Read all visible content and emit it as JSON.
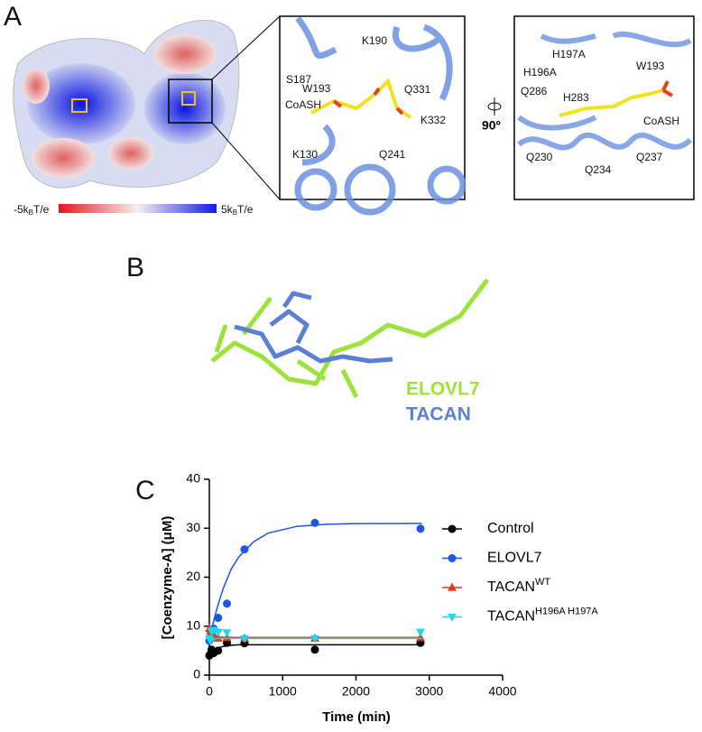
{
  "panels": {
    "A": {
      "label": "A",
      "colorbar": {
        "min": {
          "text": "-5k",
          "sub": "B",
          "suffix": "T/e"
        },
        "max": {
          "text": "5k",
          "sub": "B",
          "suffix": "T/e"
        }
      },
      "inset1_labels": [
        "K190",
        "S187",
        "W193",
        "Q331",
        "CoASH",
        "K332",
        "K130",
        "Q241"
      ],
      "rotation": "90º",
      "inset2_labels": [
        "H197A",
        "W193",
        "H196A",
        "Q286",
        "H283",
        "CoASH",
        "Q230",
        "Q234",
        "Q237"
      ]
    },
    "B": {
      "label": "B",
      "legend": [
        "ELOVL7",
        "TACAN"
      ]
    },
    "C": {
      "label": "C"
    }
  },
  "chart_data": {
    "type": "scatter",
    "x_label": "Time (min)",
    "y_label": "[Coenzyme-A] (μM)",
    "xlim": [
      0,
      4000
    ],
    "xticks": [
      0,
      1000,
      2000,
      3000,
      4000
    ],
    "ylim": [
      0,
      40
    ],
    "yticks": [
      0,
      10,
      20,
      30,
      40
    ],
    "fit_x": [
      0,
      25,
      50,
      100,
      150,
      200,
      300,
      400,
      600,
      800,
      1200,
      1600,
      2000,
      2900
    ],
    "series": [
      {
        "name": "Control",
        "color": "#000000",
        "marker": "circle",
        "x": [
          0,
          15,
          30,
          60,
          120,
          240,
          480,
          1440,
          2880
        ],
        "values": [
          4,
          4.3,
          5.2,
          4.5,
          5,
          6.6,
          6.5,
          5.2,
          6.6
        ],
        "fit": [
          4,
          4.5,
          4.9,
          5.4,
          5.7,
          5.9,
          6.1,
          6.2,
          6.2,
          6.2,
          6.2,
          6.2,
          6.2,
          6.2
        ]
      },
      {
        "name": "ELOVL7",
        "color": "#1a56e8",
        "marker": "circle",
        "x": [
          0,
          15,
          30,
          60,
          120,
          240,
          480,
          1440,
          2880
        ],
        "values": [
          7,
          7.5,
          8.5,
          9.5,
          11.7,
          14.6,
          25.7,
          31.1,
          29.9
        ],
        "fit": [
          7,
          8.8,
          10.5,
          13.4,
          15.9,
          18.1,
          21.7,
          24.1,
          27.2,
          29,
          30.4,
          30.8,
          30.95,
          31
        ]
      },
      {
        "name": "TACAN",
        "name_sup": "WT",
        "color": "#e8341c",
        "marker": "triangle",
        "x": [
          0,
          15,
          30,
          60,
          120,
          240,
          480,
          1440,
          2880
        ],
        "values": [
          9.5,
          9,
          8.7,
          8.2,
          7.5,
          7.6,
          7.5,
          7.5,
          7.6
        ],
        "fit": [
          9,
          8.56,
          8.26,
          7.95,
          7.81,
          7.75,
          7.71,
          7.7,
          7.7,
          7.7,
          7.7,
          7.7,
          7.7,
          7.7
        ]
      },
      {
        "name": "TACAN",
        "name_sup": "H196A H197A",
        "color": "#19d8e8",
        "marker": "triangle-down",
        "x": [
          0,
          15,
          30,
          60,
          120,
          240,
          480,
          1440,
          2880
        ],
        "values": [
          7.5,
          7,
          9,
          9.2,
          8.8,
          8.7,
          7.5,
          7.5,
          8.8
        ],
        "fit": [
          7.5,
          7.5,
          7.5,
          7.5,
          7.5,
          7.5,
          7.5,
          7.5,
          7.5,
          7.5,
          7.5,
          7.5,
          7.5,
          7.5
        ]
      }
    ]
  }
}
